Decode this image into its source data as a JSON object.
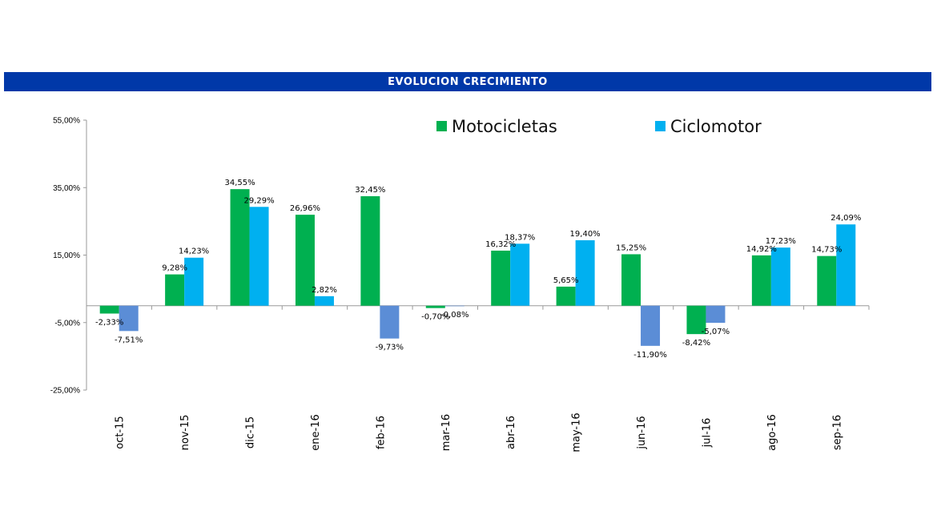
{
  "chart_data": {
    "type": "bar",
    "title": "EVOLUCION CRECIMIENTO",
    "categories": [
      "oct-15",
      "nov-15",
      "dic-15",
      "ene-16",
      "feb-16",
      "mar-16",
      "abr-16",
      "may-16",
      "jun-16",
      "jul-16",
      "ago-16",
      "sep-16"
    ],
    "series": [
      {
        "name": "Motocicletas",
        "color": "#00b050",
        "values": [
          -2.33,
          9.28,
          34.55,
          26.96,
          32.45,
          -0.7,
          16.32,
          5.65,
          15.25,
          -8.42,
          14.92,
          14.73
        ],
        "labels": [
          "-2,33%",
          "9,28%",
          "34,55%",
          "26,96%",
          "32,45%",
          "-0,70%",
          "16,32%",
          "5,65%",
          "15,25%",
          "-8,42%",
          "14,92%",
          "14,73%"
        ]
      },
      {
        "name": "Ciclomotor",
        "color": "#00b0f0",
        "negative_color": "#5b8dd6",
        "values": [
          -7.51,
          14.23,
          29.29,
          2.82,
          -9.73,
          -0.08,
          18.37,
          19.4,
          -11.9,
          -5.07,
          17.23,
          24.09
        ],
        "labels": [
          "-7,51%",
          "14,23%",
          "29,29%",
          "2,82%",
          "-9,73%",
          "-0,08%",
          "18,37%",
          "19,40%",
          "-11,90%",
          "-5,07%",
          "17,23%",
          "24,09%"
        ]
      }
    ],
    "ylim": [
      -25,
      55
    ],
    "yticks": [
      -25,
      -5,
      15,
      35,
      55
    ],
    "ytick_labels": [
      "-25,00%",
      "-5,00%",
      "15,00%",
      "35,00%",
      "55,00%"
    ],
    "legend_position": "top-right",
    "grid": false
  }
}
